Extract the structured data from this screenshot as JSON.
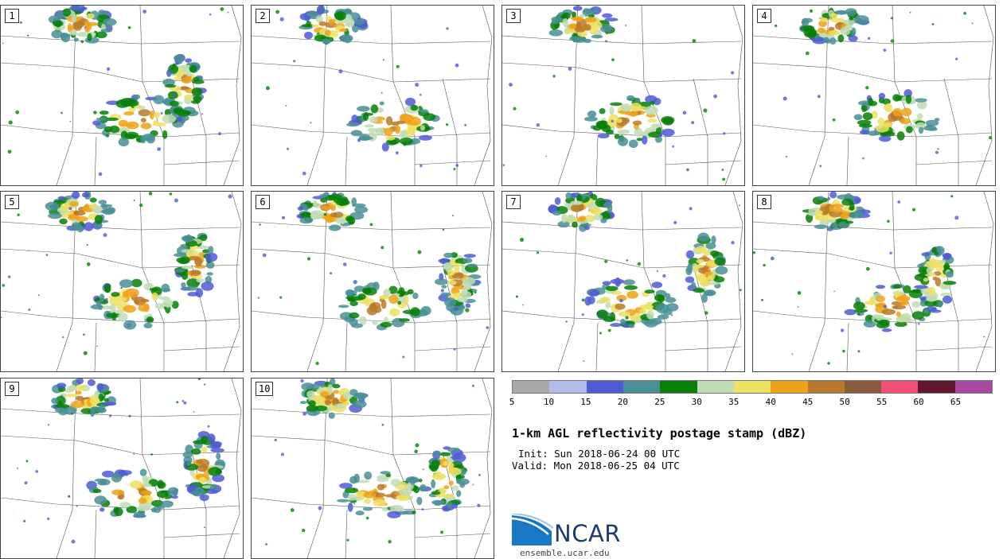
{
  "panels": [
    "1",
    "2",
    "3",
    "4",
    "5",
    "6",
    "7",
    "8",
    "9",
    "10"
  ],
  "legend": {
    "colors": [
      "#a9a9a9",
      "#b1bce8",
      "#4f5bd5",
      "#4a8f96",
      "#068006",
      "#c0dcb5",
      "#ede164",
      "#eda21a",
      "#b87a2a",
      "#8a5a3c",
      "#f25078",
      "#621530",
      "#a749a2"
    ],
    "labels": [
      "5",
      "10",
      "15",
      "20",
      "25",
      "30",
      "35",
      "40",
      "45",
      "50",
      "55",
      "60",
      "65"
    ]
  },
  "title": "1-km AGL reflectivity postage stamp (dBZ)",
  "init": "Init: Sun 2018-06-24 00 UTC",
  "valid": "Valid: Mon 2018-06-25 04 UTC",
  "logo_text": "NCAR",
  "website": "ensemble.ucar.edu"
}
